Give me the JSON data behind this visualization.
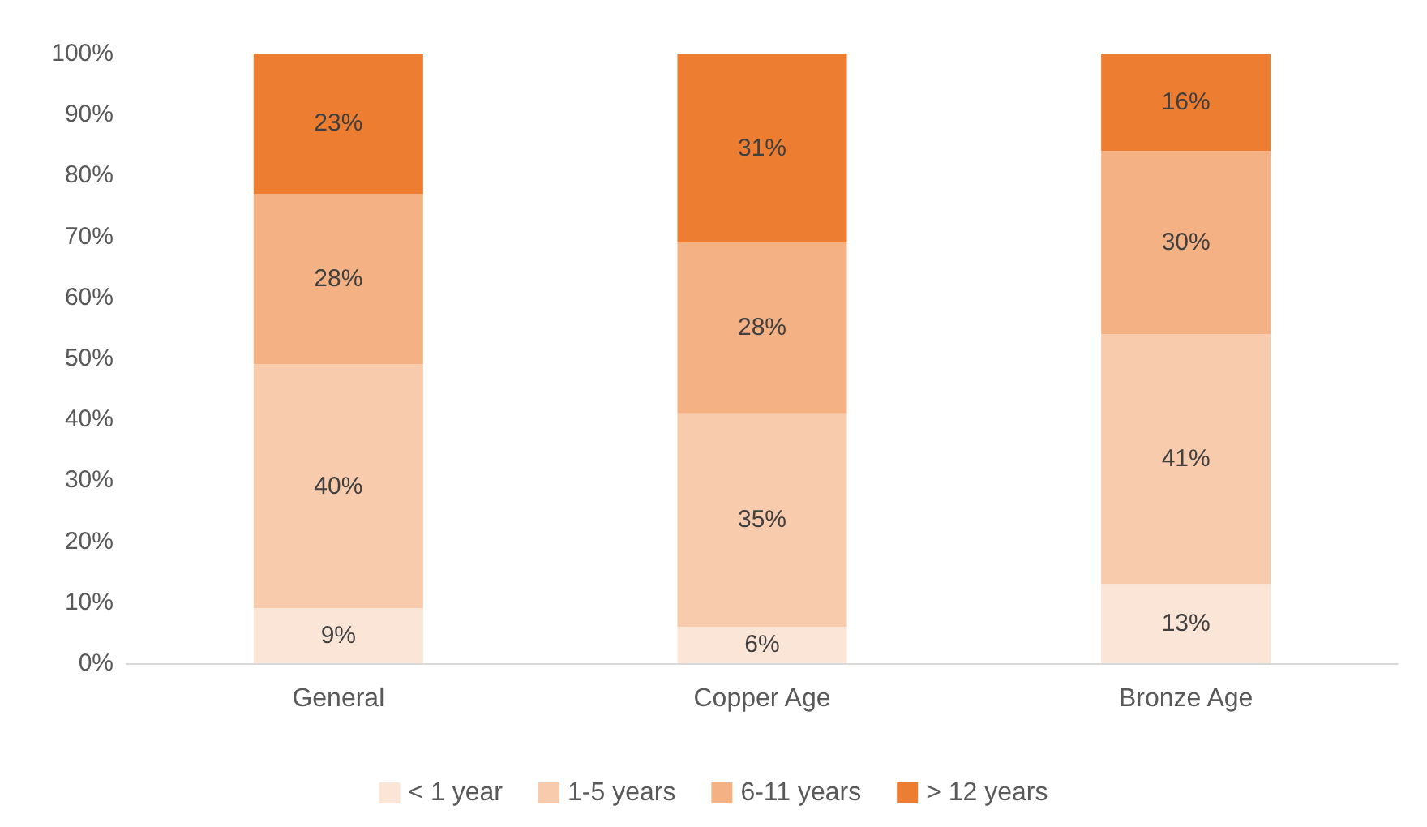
{
  "chart_data": {
    "type": "bar",
    "stacked": true,
    "categories": [
      "General",
      "Copper Age",
      "Bronze Age"
    ],
    "series": [
      {
        "name": "< 1 year",
        "color": "#fbe5d6",
        "values": [
          9,
          6,
          13
        ],
        "value_labels": [
          "9%",
          "6%",
          "13%"
        ]
      },
      {
        "name": "1-5 years",
        "color": "#f8cbad",
        "values": [
          40,
          35,
          41
        ],
        "value_labels": [
          "40%",
          "35%",
          "41%"
        ]
      },
      {
        "name": "6-11 years",
        "color": "#f4b183",
        "values": [
          28,
          28,
          30
        ],
        "value_labels": [
          "28%",
          "28%",
          "30%"
        ]
      },
      {
        "name": "> 12 years",
        "color": "#ed7d31",
        "values": [
          23,
          31,
          16
        ],
        "value_labels": [
          "23%",
          "31%",
          "16%"
        ]
      }
    ],
    "ylim": [
      0,
      100
    ],
    "yticks": [
      {
        "value": 0,
        "label": "0%"
      },
      {
        "value": 10,
        "label": "10%"
      },
      {
        "value": 20,
        "label": "20%"
      },
      {
        "value": 30,
        "label": "30%"
      },
      {
        "value": 40,
        "label": "40%"
      },
      {
        "value": 50,
        "label": "50%"
      },
      {
        "value": 60,
        "label": "60%"
      },
      {
        "value": 70,
        "label": "70%"
      },
      {
        "value": 80,
        "label": "80%"
      },
      {
        "value": 90,
        "label": "90%"
      },
      {
        "value": 100,
        "label": "100%"
      }
    ],
    "grid": false,
    "legend": "bottom"
  }
}
